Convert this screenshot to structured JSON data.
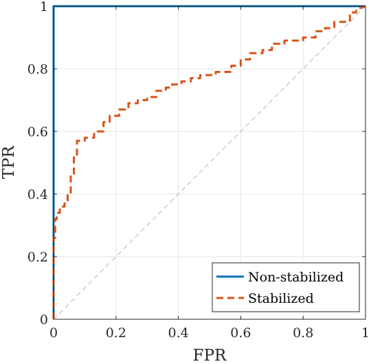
{
  "chart_data": {
    "type": "line",
    "xlabel": "FPR",
    "ylabel": "TPR",
    "xlim": [
      0,
      1
    ],
    "ylim": [
      0,
      1
    ],
    "grid": true,
    "legend_position": "bottom-right",
    "x_ticks": [
      0,
      0.2,
      0.4,
      0.6,
      0.8,
      1
    ],
    "x_tick_labels": [
      "0",
      "0.2",
      "0.4",
      "0.6",
      "0.8",
      "1"
    ],
    "y_ticks": [
      0,
      0.2,
      0.4,
      0.6,
      0.8,
      1
    ],
    "y_tick_labels": [
      "0",
      "0.2",
      "0.4",
      "0.6",
      "0.8",
      "1"
    ],
    "reference_line": {
      "x": [
        0,
        1
      ],
      "y": [
        0,
        1
      ],
      "color": "#b3b3b3",
      "style": "dashed"
    },
    "series": [
      {
        "name": "Non-stabilized",
        "color": "#0072BD",
        "style": "solid",
        "x": [
          0,
          0,
          1
        ],
        "y": [
          0,
          1,
          1
        ]
      },
      {
        "name": "Stabilized",
        "color": "#D95319",
        "style": "dashed",
        "x": [
          0,
          0,
          0.005,
          0.005,
          0.01,
          0.01,
          0.02,
          0.02,
          0.035,
          0.035,
          0.045,
          0.045,
          0.055,
          0.055,
          0.065,
          0.065,
          0.075,
          0.075,
          0.1,
          0.1,
          0.13,
          0.13,
          0.16,
          0.16,
          0.18,
          0.18,
          0.21,
          0.21,
          0.24,
          0.24,
          0.27,
          0.27,
          0.3,
          0.3,
          0.33,
          0.33,
          0.36,
          0.36,
          0.38,
          0.38,
          0.41,
          0.41,
          0.44,
          0.44,
          0.47,
          0.47,
          0.52,
          0.52,
          0.57,
          0.57,
          0.6,
          0.6,
          0.63,
          0.63,
          0.67,
          0.67,
          0.7,
          0.7,
          0.74,
          0.74,
          0.8,
          0.8,
          0.84,
          0.84,
          0.87,
          0.87,
          0.9,
          0.9,
          0.95,
          0.95,
          0.97,
          0.97,
          1
        ],
        "y": [
          0,
          0.26,
          0.26,
          0.32,
          0.32,
          0.34,
          0.34,
          0.36,
          0.36,
          0.37,
          0.37,
          0.4,
          0.4,
          0.46,
          0.46,
          0.52,
          0.52,
          0.57,
          0.57,
          0.58,
          0.58,
          0.6,
          0.6,
          0.63,
          0.63,
          0.65,
          0.65,
          0.67,
          0.67,
          0.69,
          0.69,
          0.7,
          0.7,
          0.71,
          0.71,
          0.73,
          0.73,
          0.74,
          0.74,
          0.75,
          0.75,
          0.76,
          0.76,
          0.77,
          0.77,
          0.78,
          0.78,
          0.79,
          0.79,
          0.81,
          0.81,
          0.83,
          0.83,
          0.85,
          0.85,
          0.86,
          0.86,
          0.88,
          0.88,
          0.89,
          0.89,
          0.9,
          0.9,
          0.92,
          0.92,
          0.93,
          0.93,
          0.95,
          0.95,
          0.98,
          0.98,
          0.99,
          1
        ]
      }
    ]
  }
}
